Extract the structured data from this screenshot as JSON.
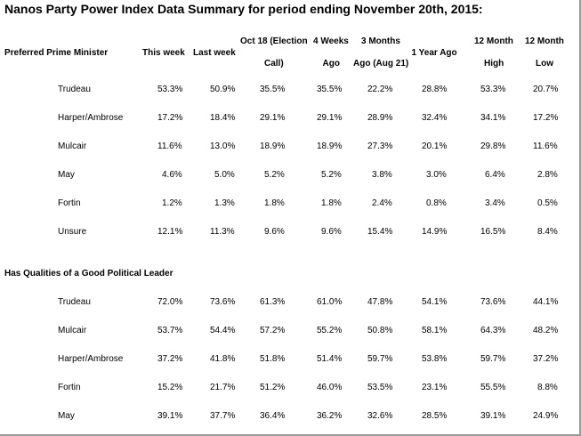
{
  "title": "Nanos Party Power Index Data Summary for period ending November 20th, 2015:",
  "columns": [
    [
      "This week"
    ],
    [
      "Last week"
    ],
    [
      "Oct 18 (Election",
      "Call)"
    ],
    [
      "4 Weeks",
      "Ago"
    ],
    [
      "3 Months",
      "Ago (Aug 21)"
    ],
    [
      "1 Year Ago"
    ],
    [
      "12 Month",
      "High"
    ],
    [
      "12 Month",
      "Low"
    ]
  ],
  "sections": [
    {
      "title": "Preferred Prime Minister",
      "rows": [
        {
          "label": "Trudeau",
          "values": [
            "53.3%",
            "50.9%",
            "35.5%",
            "35.5%",
            "22.2%",
            "28.8%",
            "53.3%",
            "20.7%"
          ]
        },
        {
          "label": "Harper/Ambrose",
          "values": [
            "17.2%",
            "18.4%",
            "29.1%",
            "29.1%",
            "28.9%",
            "32.4%",
            "34.1%",
            "17.2%"
          ]
        },
        {
          "label": "Mulcair",
          "values": [
            "11.6%",
            "13.0%",
            "18.9%",
            "18.9%",
            "27.3%",
            "20.1%",
            "29.8%",
            "11.6%"
          ]
        },
        {
          "label": "May",
          "values": [
            "4.6%",
            "5.0%",
            "5.2%",
            "5.2%",
            "3.8%",
            "3.0%",
            "6.4%",
            "2.8%"
          ]
        },
        {
          "label": "Fortin",
          "values": [
            "1.2%",
            "1.3%",
            "1.8%",
            "1.8%",
            "2.4%",
            "0.8%",
            "3.4%",
            "0.5%"
          ]
        },
        {
          "label": "Unsure",
          "values": [
            "12.1%",
            "11.3%",
            "9.6%",
            "9.6%",
            "15.4%",
            "14.9%",
            "16.5%",
            "8.4%"
          ]
        }
      ]
    },
    {
      "title": "Has Qualities of a Good Political Leader",
      "rows": [
        {
          "label": "Trudeau",
          "values": [
            "72.0%",
            "73.6%",
            "61.3%",
            "61.0%",
            "47.8%",
            "54.1%",
            "73.6%",
            "44.1%"
          ]
        },
        {
          "label": "Mulcair",
          "values": [
            "53.7%",
            "54.4%",
            "57.2%",
            "55.2%",
            "50.8%",
            "58.1%",
            "64.3%",
            "48.2%"
          ]
        },
        {
          "label": "Harper/Ambrose",
          "values": [
            "37.2%",
            "41.8%",
            "51.8%",
            "51.4%",
            "59.7%",
            "53.8%",
            "59.7%",
            "37.2%"
          ]
        },
        {
          "label": "Fortin",
          "values": [
            "15.2%",
            "21.7%",
            "51.2%",
            "46.0%",
            "53.5%",
            "23.1%",
            "55.5%",
            "8.8%"
          ]
        },
        {
          "label": "May",
          "values": [
            "39.1%",
            "37.7%",
            "36.4%",
            "36.2%",
            "32.6%",
            "28.5%",
            "39.1%",
            "24.9%"
          ]
        }
      ]
    }
  ]
}
